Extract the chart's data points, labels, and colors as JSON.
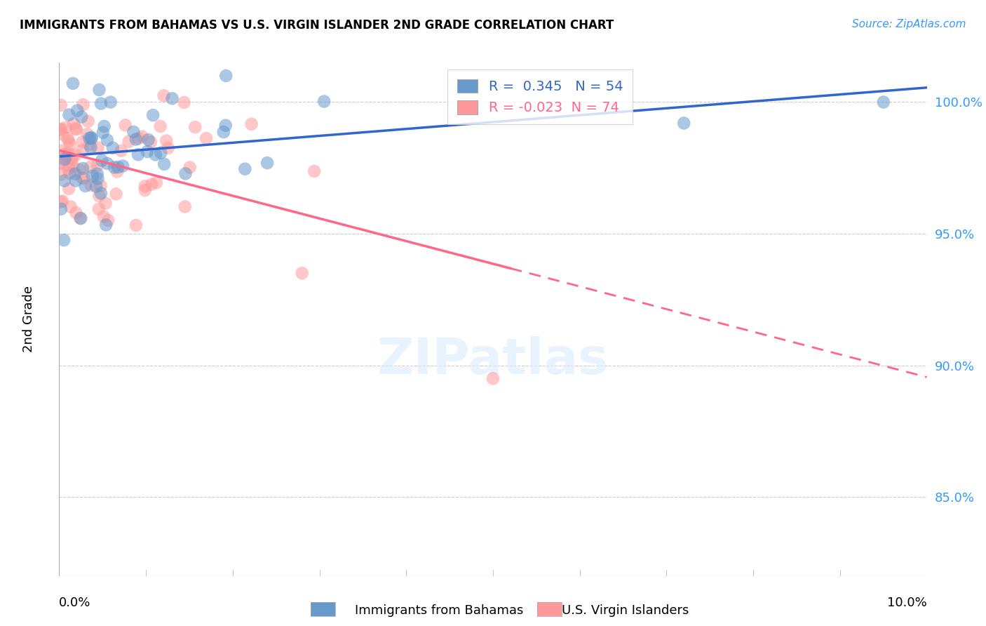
{
  "title": "IMMIGRANTS FROM BAHAMAS VS U.S. VIRGIN ISLANDER 2ND GRADE CORRELATION CHART",
  "source": "Source: ZipAtlas.com",
  "ylabel": "2nd Grade",
  "y_ticks": [
    85.0,
    90.0,
    95.0,
    100.0
  ],
  "y_tick_labels": [
    "85.0%",
    "90.0%",
    "95.0%",
    "100.0%"
  ],
  "xlim": [
    0.0,
    10.0
  ],
  "ylim": [
    82.0,
    101.5
  ],
  "blue_R": 0.345,
  "blue_N": 54,
  "pink_R": -0.023,
  "pink_N": 74,
  "blue_color": "#6699CC",
  "pink_color": "#FF9999",
  "blue_line_color": "#3366CC",
  "pink_line_color": "#FF6688",
  "grid_color": "#CCCCCC",
  "background_color": "#FFFFFF"
}
